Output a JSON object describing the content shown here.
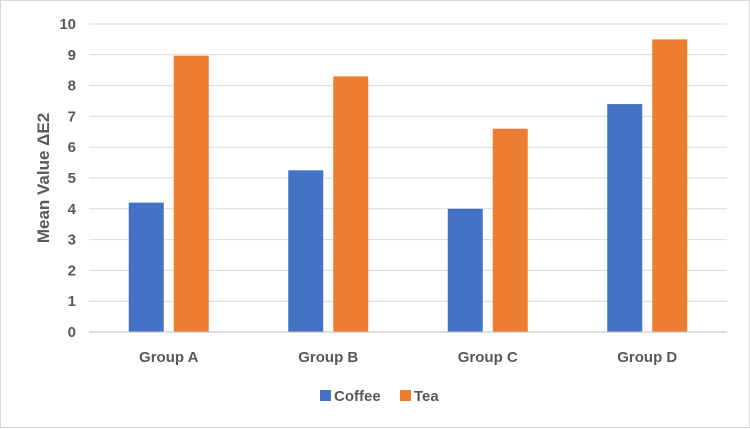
{
  "chart_data": {
    "type": "bar",
    "title": "",
    "xlabel": "",
    "ylabel": "Mean Value ΔE2",
    "categories": [
      "Group A",
      "Group B",
      "Group C",
      "Group D"
    ],
    "series": [
      {
        "name": "Coffee",
        "color": "#4472c4",
        "values": [
          4.2,
          5.25,
          4.0,
          7.4
        ]
      },
      {
        "name": "Tea",
        "color": "#ed7d31",
        "values": [
          8.97,
          8.3,
          6.6,
          9.5
        ]
      }
    ],
    "ylim": [
      0,
      10
    ],
    "yticks": [
      0,
      1,
      2,
      3,
      4,
      5,
      6,
      7,
      8,
      9,
      10
    ],
    "grid": true,
    "legend_position": "bottom"
  }
}
